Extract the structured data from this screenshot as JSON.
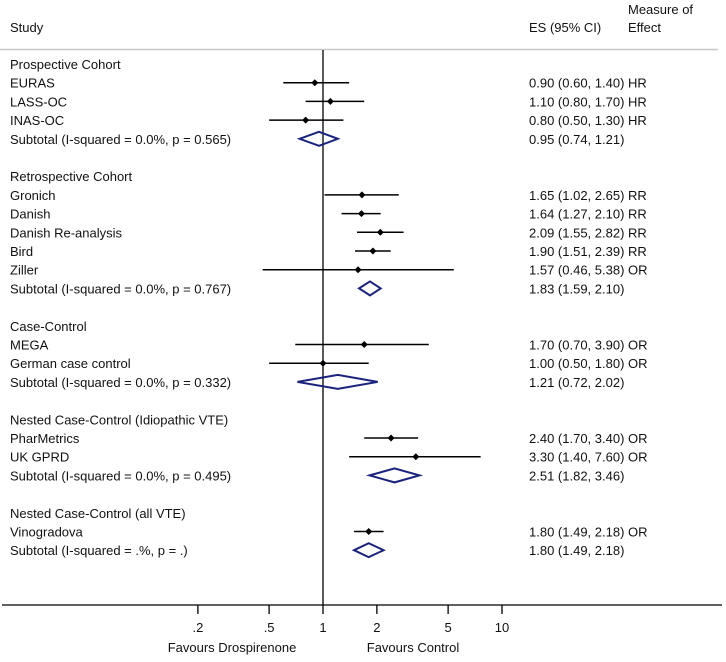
{
  "chart_data": {
    "type": "forest",
    "xscale": "log",
    "xlim": [
      0.1,
      10
    ],
    "reference_line": 1,
    "headers": {
      "study": "Study",
      "es": "ES (95% CI)",
      "measure_line1": "Measure of",
      "measure_line2": "Effect"
    },
    "x_ticks": [
      {
        "value": 0.2,
        "label": ".2"
      },
      {
        "value": 0.5,
        "label": ".5"
      },
      {
        "value": 1,
        "label": "1"
      },
      {
        "value": 2,
        "label": "2"
      },
      {
        "value": 5,
        "label": "5"
      },
      {
        "value": 10,
        "label": "10"
      }
    ],
    "favours_left": "Favours Drospirenone",
    "favours_right": "Favours Control",
    "colors": {
      "point": "#000000",
      "diamond": "#1a237e",
      "divider": "#c8c8c8"
    },
    "groups": [
      {
        "name": "Prospective Cohort",
        "studies": [
          {
            "label": "EURAS",
            "es": 0.9,
            "lo": 0.6,
            "hi": 1.4,
            "text": "0.90 (0.60, 1.40)",
            "measure": "HR"
          },
          {
            "label": "LASS-OC",
            "es": 1.1,
            "lo": 0.8,
            "hi": 1.7,
            "text": "1.10 (0.80, 1.70)",
            "measure": "HR"
          },
          {
            "label": "INAS-OC",
            "es": 0.8,
            "lo": 0.5,
            "hi": 1.3,
            "text": "0.80 (0.50, 1.30)",
            "measure": "HR"
          }
        ],
        "subtotal": {
          "label": "Subtotal  (I-squared = 0.0%, p = 0.565)",
          "es": 0.95,
          "lo": 0.74,
          "hi": 1.21,
          "text": "0.95 (0.74, 1.21)"
        }
      },
      {
        "name": "Retrospective Cohort",
        "studies": [
          {
            "label": "Gronich",
            "es": 1.65,
            "lo": 1.02,
            "hi": 2.65,
            "text": "1.65 (1.02, 2.65)",
            "measure": "RR"
          },
          {
            "label": "Danish",
            "es": 1.64,
            "lo": 1.27,
            "hi": 2.1,
            "text": "1.64 (1.27, 2.10)",
            "measure": "RR"
          },
          {
            "label": "Danish Re-analysis",
            "es": 2.09,
            "lo": 1.55,
            "hi": 2.82,
            "text": "2.09 (1.55, 2.82)",
            "measure": "RR"
          },
          {
            "label": "Bird",
            "es": 1.9,
            "lo": 1.51,
            "hi": 2.39,
            "text": "1.90 (1.51, 2.39)",
            "measure": "RR"
          },
          {
            "label": "Ziller",
            "es": 1.57,
            "lo": 0.46,
            "hi": 5.38,
            "text": "1.57 (0.46, 5.38)",
            "measure": "OR"
          }
        ],
        "subtotal": {
          "label": "Subtotal  (I-squared = 0.0%, p = 0.767)",
          "es": 1.83,
          "lo": 1.59,
          "hi": 2.1,
          "text": "1.83 (1.59, 2.10)"
        }
      },
      {
        "name": "Case-Control",
        "studies": [
          {
            "label": "MEGA",
            "es": 1.7,
            "lo": 0.7,
            "hi": 3.9,
            "text": "1.70 (0.70, 3.90)",
            "measure": "OR"
          },
          {
            "label": "German case control",
            "es": 1.0,
            "lo": 0.5,
            "hi": 1.8,
            "text": "1.00 (0.50, 1.80)",
            "measure": "OR"
          }
        ],
        "subtotal": {
          "label": "Subtotal  (I-squared = 0.0%, p = 0.332)",
          "es": 1.21,
          "lo": 0.72,
          "hi": 2.02,
          "text": "1.21 (0.72, 2.02)"
        }
      },
      {
        "name": "Nested Case-Control (Idiopathic VTE)",
        "studies": [
          {
            "label": "PharMetrics",
            "es": 2.4,
            "lo": 1.7,
            "hi": 3.4,
            "text": "2.40 (1.70, 3.40)",
            "measure": "OR"
          },
          {
            "label": "UK GPRD",
            "es": 3.3,
            "lo": 1.4,
            "hi": 7.6,
            "text": "3.30 (1.40, 7.60)",
            "measure": "OR"
          }
        ],
        "subtotal": {
          "label": "Subtotal  (I-squared = 0.0%, p = 0.495)",
          "es": 2.51,
          "lo": 1.82,
          "hi": 3.46,
          "text": "2.51 (1.82, 3.46)"
        }
      },
      {
        "name": "Nested Case-Control (all VTE)",
        "studies": [
          {
            "label": "Vinogradova",
            "es": 1.8,
            "lo": 1.49,
            "hi": 2.18,
            "text": "1.80 (1.49, 2.18)",
            "measure": "OR"
          }
        ],
        "subtotal": {
          "label": "Subtotal  (I-squared = .%, p = .)",
          "es": 1.8,
          "lo": 1.49,
          "hi": 2.18,
          "text": "1.80 (1.49, 2.18)"
        }
      }
    ]
  }
}
